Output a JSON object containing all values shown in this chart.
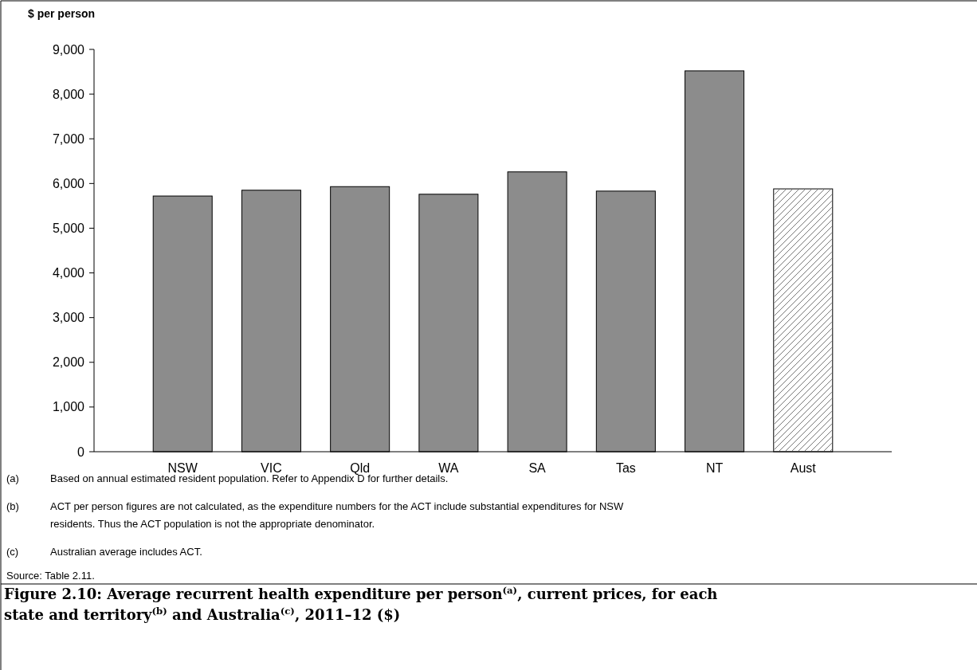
{
  "chart_data": {
    "type": "bar",
    "title": "Figure 2.10: Average recurrent health expenditure per person$^{(a)}$, current prices, for each state and territory$^{(b)}$ and Australia$^{(c)}$, 2011–12 ($)",
    "ylabel": "$ per person",
    "categories": [
      "NSW",
      "VIC",
      "Qld",
      "WA",
      "SA",
      "Tas",
      "NT",
      "Aust"
    ],
    "values": [
      5720,
      5850,
      5930,
      5760,
      6260,
      5830,
      8520,
      5880
    ],
    "colors": [
      "#8c8c8c",
      "#8c8c8c",
      "#8c8c8c",
      "#8c8c8c",
      "#8c8c8c",
      "#8c8c8c",
      "#8c8c8c",
      "#ffffff"
    ],
    "ylim": [
      0,
      9000
    ],
    "yticks": [
      0,
      {
        "value": 1000,
        "label": "1,000"
      },
      {
        "value": 2000,
        "label": "2,000"
      },
      {
        "value": 3000,
        "label": "3,000"
      },
      {
        "value": 4000,
        "label": "4,000"
      },
      {
        "value": 5000,
        "label": "5,000"
      },
      {
        "value": 6000,
        "label": "6,000"
      },
      {
        "value": 7000,
        "label": "7,000"
      },
      {
        "value": 8000,
        "label": "8,000"
      },
      {
        "value": 9000,
        "label": "9,000"
      }
    ],
    "grid": false,
    "annotations": [
      "(a) Based on annual estimated resident population. Refer to Appendix D for further details.",
      "(b) ACT per person figures are not calculated, as the expenditure numbers for the ACT include substantial expenditures for NSW residents. Thus the ACT population is not the appropriate denominator.",
      "(c) Australian average includes ACT.",
      "Source: Table 2.11."
    ]
  }
}
